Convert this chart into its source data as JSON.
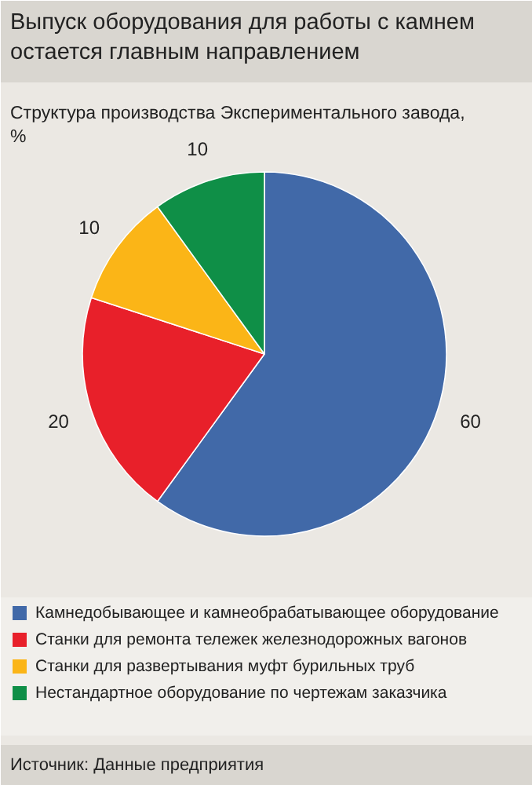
{
  "chart_data": {
    "type": "pie",
    "title": "Выпуск оборудования для работы с камнем остается главным направлением",
    "subtitle": "Структура производства Экспериментального завода, %",
    "categories": [
      "Камнедобывающее и камнеобрабатывающее оборудование",
      "Станки для ремонта тележек железнодорожных вагонов",
      "Станки для развертывания муфт бурильных труб",
      "Нестандартное оборудование по чертежам заказчика"
    ],
    "values": [
      60,
      20,
      10,
      10
    ],
    "colors": [
      "#4169a8",
      "#e8202a",
      "#fbb517",
      "#0f8f47"
    ],
    "data_labels": true,
    "legend": "bottom",
    "annotations": [
      "Источник: Данные предприятия"
    ]
  }
}
